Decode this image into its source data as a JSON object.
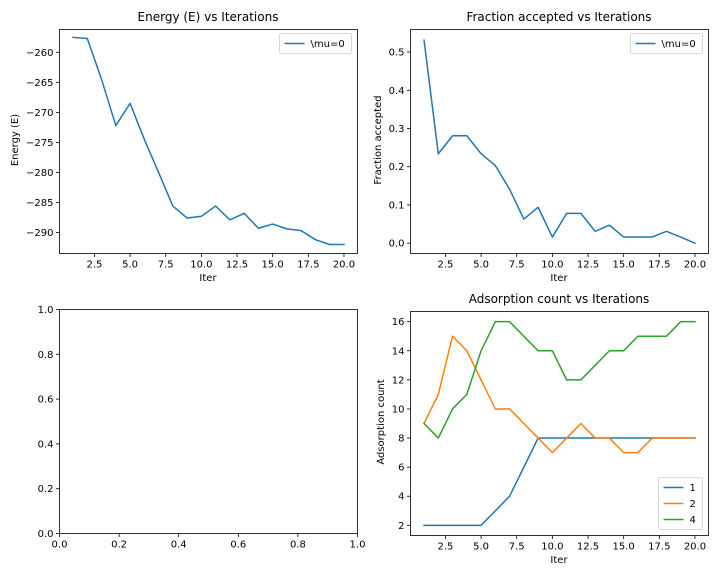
{
  "colors": {
    "c1": "#1f77b4",
    "c2": "#ff7f0e",
    "c3": "#2ca02c",
    "axis": "#000000",
    "legend_edge": "#cccccc"
  },
  "chart_data": [
    {
      "type": "line",
      "title": "Energy (E) vs Iterations",
      "xlabel": "Iter",
      "ylabel": "Energy (E)",
      "xlim": [
        0.05,
        20.95
      ],
      "ylim": [
        -293.5,
        -256.2
      ],
      "xticks": [
        2.5,
        5.0,
        7.5,
        10.0,
        12.5,
        15.0,
        17.5,
        20.0
      ],
      "xtick_labels": [
        "2.5",
        "5.0",
        "7.5",
        "10.0",
        "12.5",
        "15.0",
        "17.5",
        "20.0"
      ],
      "yticks": [
        -260,
        -265,
        -270,
        -275,
        -280,
        -285,
        -290
      ],
      "ytick_labels": [
        "−260",
        "−265",
        "−270",
        "−275",
        "−280",
        "−285",
        "−290"
      ],
      "legend": "upper right",
      "grid": false,
      "series": [
        {
          "name": "\\mu=0",
          "color": "#1f77b4",
          "x": [
            1,
            2,
            3,
            4,
            5,
            6,
            7,
            8,
            9,
            10,
            11,
            12,
            13,
            14,
            15,
            16,
            17,
            18,
            19,
            20
          ],
          "y": [
            -257.5,
            -257.7,
            -264.5,
            -272.2,
            -268.5,
            -274.5,
            -280,
            -285.6,
            -287.6,
            -287.3,
            -285.6,
            -287.9,
            -286.8,
            -289.3,
            -288.6,
            -289.4,
            -289.7,
            -291.2,
            -292,
            -292
          ]
        }
      ]
    },
    {
      "type": "line",
      "title": "Fraction accepted vs Iterations",
      "xlabel": "Iter",
      "ylabel": "Fraction accepted",
      "xlim": [
        0.05,
        20.95
      ],
      "ylim": [
        -0.027,
        0.559
      ],
      "xticks": [
        2.5,
        5.0,
        7.5,
        10.0,
        12.5,
        15.0,
        17.5,
        20.0
      ],
      "xtick_labels": [
        "2.5",
        "5.0",
        "7.5",
        "10.0",
        "12.5",
        "15.0",
        "17.5",
        "20.0"
      ],
      "yticks": [
        0.0,
        0.1,
        0.2,
        0.3,
        0.4,
        0.5
      ],
      "ytick_labels": [
        "0.0",
        "0.1",
        "0.2",
        "0.3",
        "0.4",
        "0.5"
      ],
      "legend": "upper right",
      "grid": false,
      "series": [
        {
          "name": "\\mu=0",
          "color": "#1f77b4",
          "x": [
            1,
            2,
            3,
            4,
            5,
            6,
            7,
            8,
            9,
            10,
            11,
            12,
            13,
            14,
            15,
            16,
            17,
            18,
            19,
            20
          ],
          "y": [
            0.531,
            0.234,
            0.281,
            0.281,
            0.234,
            0.203,
            0.141,
            0.063,
            0.094,
            0.016,
            0.078,
            0.078,
            0.031,
            0.047,
            0.016,
            0.016,
            0.016,
            0.031,
            0.016,
            0.0
          ]
        }
      ]
    },
    {
      "type": "line",
      "title": "",
      "xlabel": "",
      "ylabel": "",
      "xlim": [
        0,
        1
      ],
      "ylim": [
        0,
        1
      ],
      "xticks": [
        0.0,
        0.2,
        0.4,
        0.6,
        0.8,
        1.0
      ],
      "xtick_labels": [
        "0.0",
        "0.2",
        "0.4",
        "0.6",
        "0.8",
        "1.0"
      ],
      "yticks": [
        0.0,
        0.2,
        0.4,
        0.6,
        0.8,
        1.0
      ],
      "ytick_labels": [
        "0.0",
        "0.2",
        "0.4",
        "0.6",
        "0.8",
        "1.0"
      ],
      "legend": "none",
      "grid": false,
      "series": []
    },
    {
      "type": "line",
      "title": "Adsorption count vs Iterations",
      "xlabel": "Iter",
      "ylabel": "Adsorption count",
      "xlim": [
        0.05,
        20.95
      ],
      "ylim": [
        1.3,
        16.7
      ],
      "xticks": [
        2.5,
        5.0,
        7.5,
        10.0,
        12.5,
        15.0,
        17.5,
        20.0
      ],
      "xtick_labels": [
        "2.5",
        "5.0",
        "7.5",
        "10.0",
        "12.5",
        "15.0",
        "17.5",
        "20.0"
      ],
      "yticks": [
        2,
        4,
        6,
        8,
        10,
        12,
        14,
        16
      ],
      "ytick_labels": [
        "2",
        "4",
        "6",
        "8",
        "10",
        "12",
        "14",
        "16"
      ],
      "legend": "lower right",
      "grid": false,
      "series": [
        {
          "name": "1",
          "color": "#1f77b4",
          "x": [
            1,
            2,
            3,
            4,
            5,
            6,
            7,
            8,
            9,
            10,
            11,
            12,
            13,
            14,
            15,
            16,
            17,
            18,
            19,
            20
          ],
          "y": [
            2,
            2,
            2,
            2,
            2,
            3,
            4,
            6,
            8,
            8,
            8,
            8,
            8,
            8,
            8,
            8,
            8,
            8,
            8,
            8
          ]
        },
        {
          "name": "2",
          "color": "#ff7f0e",
          "x": [
            1,
            2,
            3,
            4,
            5,
            6,
            7,
            8,
            9,
            10,
            11,
            12,
            13,
            14,
            15,
            16,
            17,
            18,
            19,
            20
          ],
          "y": [
            9,
            11,
            15,
            14,
            12,
            10,
            10,
            9,
            8,
            7,
            8,
            9,
            8,
            8,
            7,
            7,
            8,
            8,
            8,
            8
          ]
        },
        {
          "name": "4",
          "color": "#2ca02c",
          "x": [
            1,
            2,
            3,
            4,
            5,
            6,
            7,
            8,
            9,
            10,
            11,
            12,
            13,
            14,
            15,
            16,
            17,
            18,
            19,
            20
          ],
          "y": [
            9,
            8,
            10,
            11,
            14,
            16,
            16,
            15,
            14,
            14,
            12,
            12,
            13,
            14,
            14,
            15,
            15,
            15,
            16,
            16
          ]
        }
      ]
    }
  ]
}
